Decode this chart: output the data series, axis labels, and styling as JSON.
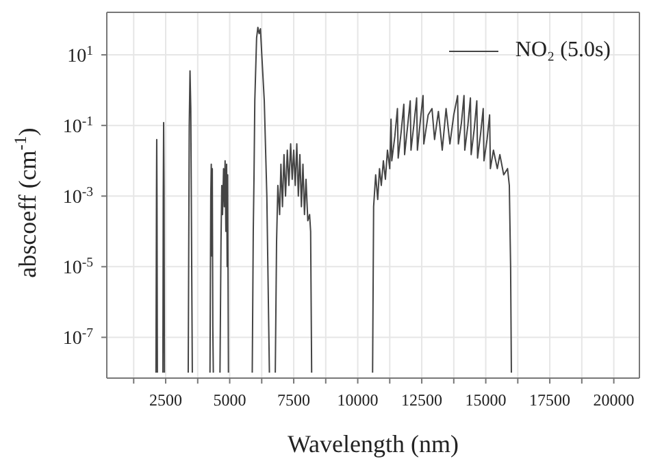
{
  "chart_data": {
    "type": "line",
    "xlabel": "Wavelength (nm)",
    "ylabel": "abscoeff (cm$^{-1}$)",
    "log": "y",
    "grid": true,
    "legend": "top right",
    "marker": "none",
    "line_style": "solid",
    "xlim": [
      200,
      21000
    ],
    "xticks": [
      {
        "value": 1250,
        "label": null
      },
      2500,
      {
        "value": 3750,
        "label": null
      },
      5000,
      {
        "value": 6250,
        "label": null
      },
      7500,
      {
        "value": 8750,
        "label": null
      },
      10000,
      {
        "value": 11250,
        "label": null
      },
      12500,
      {
        "value": 13750,
        "label": null
      },
      15000,
      {
        "value": 16250,
        "label": null
      },
      17500,
      {
        "value": 18750,
        "label": null
      },
      20000
    ],
    "ylim": [
      7e-09,
      160
    ],
    "yticks": [
      {
        "value": 10,
        "label": "10$^{1}$"
      },
      {
        "value": 0.1,
        "label": "10$^{-1}$"
      },
      {
        "value": 0.001,
        "label": "10$^{-3}$"
      },
      {
        "value": 1e-05,
        "label": "10$^{-5}$"
      },
      {
        "value": 1e-07,
        "label": "10$^{-7}$"
      }
    ],
    "series": [
      {
        "name": "NO₂ (5.0s)",
        "color": "#444444",
        "x": [
          2120,
          2140,
          2150,
          2160,
          2175,
          2280,
          2390,
          2405,
          2420,
          2435,
          2450,
          2900,
          3380,
          3420,
          3450,
          3480,
          3540,
          3900,
          4230,
          4260,
          4280,
          4300,
          4320,
          4340,
          4360,
          4500,
          4620,
          4660,
          4690,
          4720,
          4760,
          4790,
          4820,
          4850,
          4880,
          4900,
          4920,
          4950,
          5400,
          5880,
          5920,
          5950,
          5980,
          6050,
          6100,
          6150,
          6200,
          6260,
          6350,
          6450,
          6550,
          6650,
          6780,
          6830,
          6880,
          6950,
          7000,
          7060,
          7120,
          7180,
          7250,
          7310,
          7380,
          7440,
          7500,
          7560,
          7620,
          7680,
          7740,
          7800,
          7860,
          7920,
          7980,
          8050,
          8120,
          8160,
          8200,
          9400,
          10580,
          10620,
          10700,
          10780,
          10850,
          10920,
          11000,
          11080,
          11160,
          11250,
          11300,
          11330,
          11450,
          11550,
          11580,
          11700,
          11800,
          11830,
          11950,
          12050,
          12080,
          12200,
          12300,
          12330,
          12450,
          12550,
          12580,
          12750,
          12900,
          13000,
          13150,
          13300,
          13450,
          13600,
          13750,
          13900,
          13930,
          14050,
          14150,
          14180,
          14300,
          14400,
          14430,
          14550,
          14650,
          14680,
          14800,
          14900,
          14930,
          15050,
          15150,
          15180,
          15300,
          15450,
          15550,
          15700,
          15850,
          15920,
          15970,
          16000
        ],
        "values": [
          1e-08,
          0.001,
          0.04,
          0.001,
          1e-08,
          null,
          1e-08,
          0.001,
          0.12,
          0.002,
          1e-08,
          null,
          1e-08,
          0.1,
          3.5,
          0.3,
          1e-08,
          null,
          1e-08,
          0.001,
          0.008,
          2e-05,
          0.006,
          2e-07,
          1e-08,
          null,
          1e-08,
          5e-05,
          0.002,
          0.0003,
          0.006,
          0.0005,
          0.01,
          0.0001,
          0.008,
          1e-05,
          0.004,
          1e-08,
          null,
          1e-08,
          0.0001,
          0.004,
          0.5,
          30,
          60,
          40,
          55,
          8,
          0.5,
          0.001,
          1e-08,
          null,
          1e-08,
          5e-05,
          0.002,
          0.0003,
          0.008,
          0.0005,
          0.015,
          0.001,
          0.02,
          0.002,
          0.03,
          0.003,
          0.02,
          0.002,
          0.03,
          0.001,
          0.015,
          0.0005,
          0.008,
          0.0003,
          0.003,
          0.0002,
          0.0003,
          0.0001,
          1e-08,
          null,
          1e-08,
          0.0005,
          0.004,
          0.0008,
          0.006,
          0.002,
          0.01,
          0.003,
          0.02,
          0.006,
          0.15,
          0.01,
          0.05,
          0.3,
          0.012,
          0.07,
          0.4,
          0.015,
          0.1,
          0.5,
          0.02,
          0.12,
          0.6,
          0.02,
          0.15,
          0.7,
          0.03,
          0.2,
          0.3,
          0.04,
          0.25,
          0.02,
          0.3,
          0.03,
          0.2,
          0.7,
          0.03,
          0.12,
          0.7,
          0.02,
          0.1,
          0.6,
          0.015,
          0.08,
          0.5,
          0.012,
          0.06,
          0.3,
          0.01,
          0.04,
          0.2,
          0.006,
          0.02,
          0.006,
          0.015,
          0.004,
          0.006,
          0.002,
          1e-05,
          1e-08
        ]
      }
    ]
  }
}
